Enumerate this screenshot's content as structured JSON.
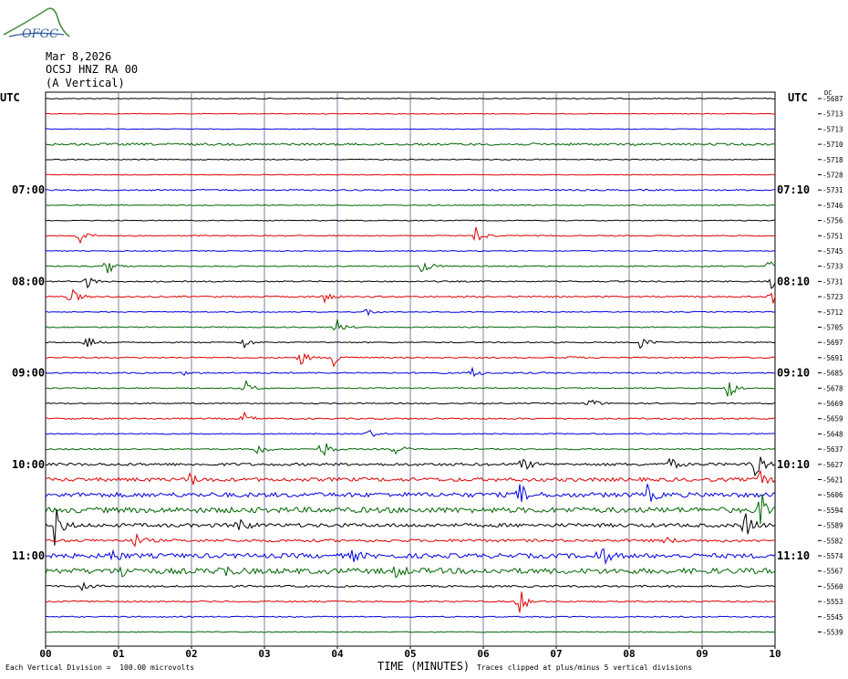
{
  "header": {
    "logo_text": "OFGC",
    "date": "Mar 8,2026",
    "station": "OCSJ HNZ RA 00",
    "component": "(A Vertical)",
    "utc_left": "UTC",
    "utc_right": "UTC",
    "dc_label": "DC"
  },
  "footer": {
    "scale_note": "Each Vertical Division =  100.00 microvolts",
    "xlabel": "TIME (MINUTES)",
    "clip_note": "Traces clipped at plus/minus 5 vertical divisions"
  },
  "colors": {
    "black": "#000000",
    "red": "#e00000",
    "blue": "#0000e0",
    "green": "#006600",
    "grid": "#7f7fa0"
  },
  "chart_data": {
    "type": "line",
    "title": "",
    "xlabel": "TIME (MINUTES)",
    "ylabel": "",
    "xlim": [
      0,
      10
    ],
    "grid": true,
    "x_ticks": [
      "00",
      "01",
      "02",
      "03",
      "04",
      "05",
      "06",
      "07",
      "08",
      "09",
      "10"
    ],
    "left_time_labels": [
      {
        "row": 6,
        "label": "07:00"
      },
      {
        "row": 12,
        "label": "08:00"
      },
      {
        "row": 18,
        "label": "09:00"
      },
      {
        "row": 24,
        "label": "10:00"
      },
      {
        "row": 30,
        "label": "11:00"
      }
    ],
    "right_time_labels": [
      {
        "row": 6,
        "label": "07:10"
      },
      {
        "row": 12,
        "label": "08:10"
      },
      {
        "row": 18,
        "label": "09:10"
      },
      {
        "row": 24,
        "label": "10:10"
      },
      {
        "row": 30,
        "label": "11:10"
      }
    ],
    "trace_colors": [
      "black",
      "red",
      "blue",
      "green"
    ],
    "dc_offsets": [
      "-5687",
      "-5713",
      "-5713",
      "-5710",
      "-5718",
      "-5728",
      "-5731",
      "-5746",
      "-5756",
      "-5751",
      "-5745",
      "-5733",
      "-5731",
      "-5723",
      "-5712",
      "-5705",
      "-5697",
      "-5691",
      "-5685",
      "-5678",
      "-5669",
      "-5659",
      "-5648",
      "-5637",
      "-5627",
      "-5621",
      "-5606",
      "-5594",
      "-5589",
      "-5582",
      "-5574",
      "-5567",
      "-5560",
      "-5553",
      "-5545",
      "-5539"
    ],
    "trace_noise": [
      0.5,
      0.4,
      0.4,
      1.2,
      0.5,
      0.4,
      0.8,
      0.5,
      0.5,
      0.6,
      0.5,
      0.6,
      0.7,
      0.8,
      0.5,
      0.6,
      0.6,
      0.7,
      0.8,
      0.6,
      0.6,
      0.8,
      0.6,
      0.7,
      1.5,
      2.0,
      2.5,
      3.0,
      2.0,
      1.5,
      2.5,
      3.0,
      1.0,
      0.8,
      0.6,
      0.5
    ],
    "events": [
      {
        "row": 9,
        "t": 0.45,
        "amp": 12
      },
      {
        "row": 9,
        "t": 5.9,
        "amp": 12
      },
      {
        "row": 11,
        "t": 0.85,
        "amp": 9
      },
      {
        "row": 11,
        "t": 5.15,
        "amp": 14
      },
      {
        "row": 11,
        "t": 9.9,
        "amp": 8
      },
      {
        "row": 12,
        "t": 0.55,
        "amp": 9
      },
      {
        "row": 12,
        "t": 9.95,
        "amp": 9
      },
      {
        "row": 13,
        "t": 0.35,
        "amp": 10
      },
      {
        "row": 13,
        "t": 3.8,
        "amp": 8
      },
      {
        "row": 13,
        "t": 9.95,
        "amp": 9
      },
      {
        "row": 14,
        "t": 4.4,
        "amp": 5
      },
      {
        "row": 15,
        "t": 4.0,
        "amp": 9
      },
      {
        "row": 16,
        "t": 0.55,
        "amp": 12
      },
      {
        "row": 16,
        "t": 2.7,
        "amp": 8
      },
      {
        "row": 16,
        "t": 8.15,
        "amp": 10
      },
      {
        "row": 17,
        "t": 3.5,
        "amp": 8
      },
      {
        "row": 17,
        "t": 3.95,
        "amp": 12
      },
      {
        "row": 17,
        "t": 7.2,
        "amp": 2
      },
      {
        "row": 18,
        "t": 1.9,
        "amp": 2
      },
      {
        "row": 18,
        "t": 5.85,
        "amp": 6
      },
      {
        "row": 19,
        "t": 2.75,
        "amp": 8
      },
      {
        "row": 19,
        "t": 9.35,
        "amp": 14
      },
      {
        "row": 20,
        "t": 7.45,
        "amp": 8
      },
      {
        "row": 21,
        "t": 2.7,
        "amp": 8
      },
      {
        "row": 22,
        "t": 4.4,
        "amp": 7
      },
      {
        "row": 23,
        "t": 2.9,
        "amp": 10
      },
      {
        "row": 23,
        "t": 3.8,
        "amp": 12
      },
      {
        "row": 23,
        "t": 4.8,
        "amp": 7
      },
      {
        "row": 24,
        "t": 6.55,
        "amp": 8
      },
      {
        "row": 24,
        "t": 8.55,
        "amp": 8
      },
      {
        "row": 24,
        "t": 9.7,
        "amp": 30
      },
      {
        "row": 25,
        "t": 1.95,
        "amp": 10
      },
      {
        "row": 25,
        "t": 9.75,
        "amp": 14
      },
      {
        "row": 26,
        "t": 6.5,
        "amp": 12
      },
      {
        "row": 26,
        "t": 8.25,
        "amp": 10
      },
      {
        "row": 27,
        "t": 9.8,
        "amp": 22
      },
      {
        "row": 28,
        "t": 0.1,
        "amp": 30
      },
      {
        "row": 28,
        "t": 2.65,
        "amp": 10
      },
      {
        "row": 28,
        "t": 9.6,
        "amp": 16
      },
      {
        "row": 29,
        "t": 1.2,
        "amp": 10
      },
      {
        "row": 29,
        "t": 8.5,
        "amp": 4
      },
      {
        "row": 30,
        "t": 0.9,
        "amp": 9
      },
      {
        "row": 30,
        "t": 4.2,
        "amp": 6
      },
      {
        "row": 30,
        "t": 7.6,
        "amp": 14
      },
      {
        "row": 31,
        "t": 1.0,
        "amp": 12
      },
      {
        "row": 31,
        "t": 2.4,
        "amp": 10
      },
      {
        "row": 31,
        "t": 4.8,
        "amp": 7
      },
      {
        "row": 32,
        "t": 0.5,
        "amp": 6
      },
      {
        "row": 33,
        "t": 6.5,
        "amp": 14
      }
    ]
  }
}
